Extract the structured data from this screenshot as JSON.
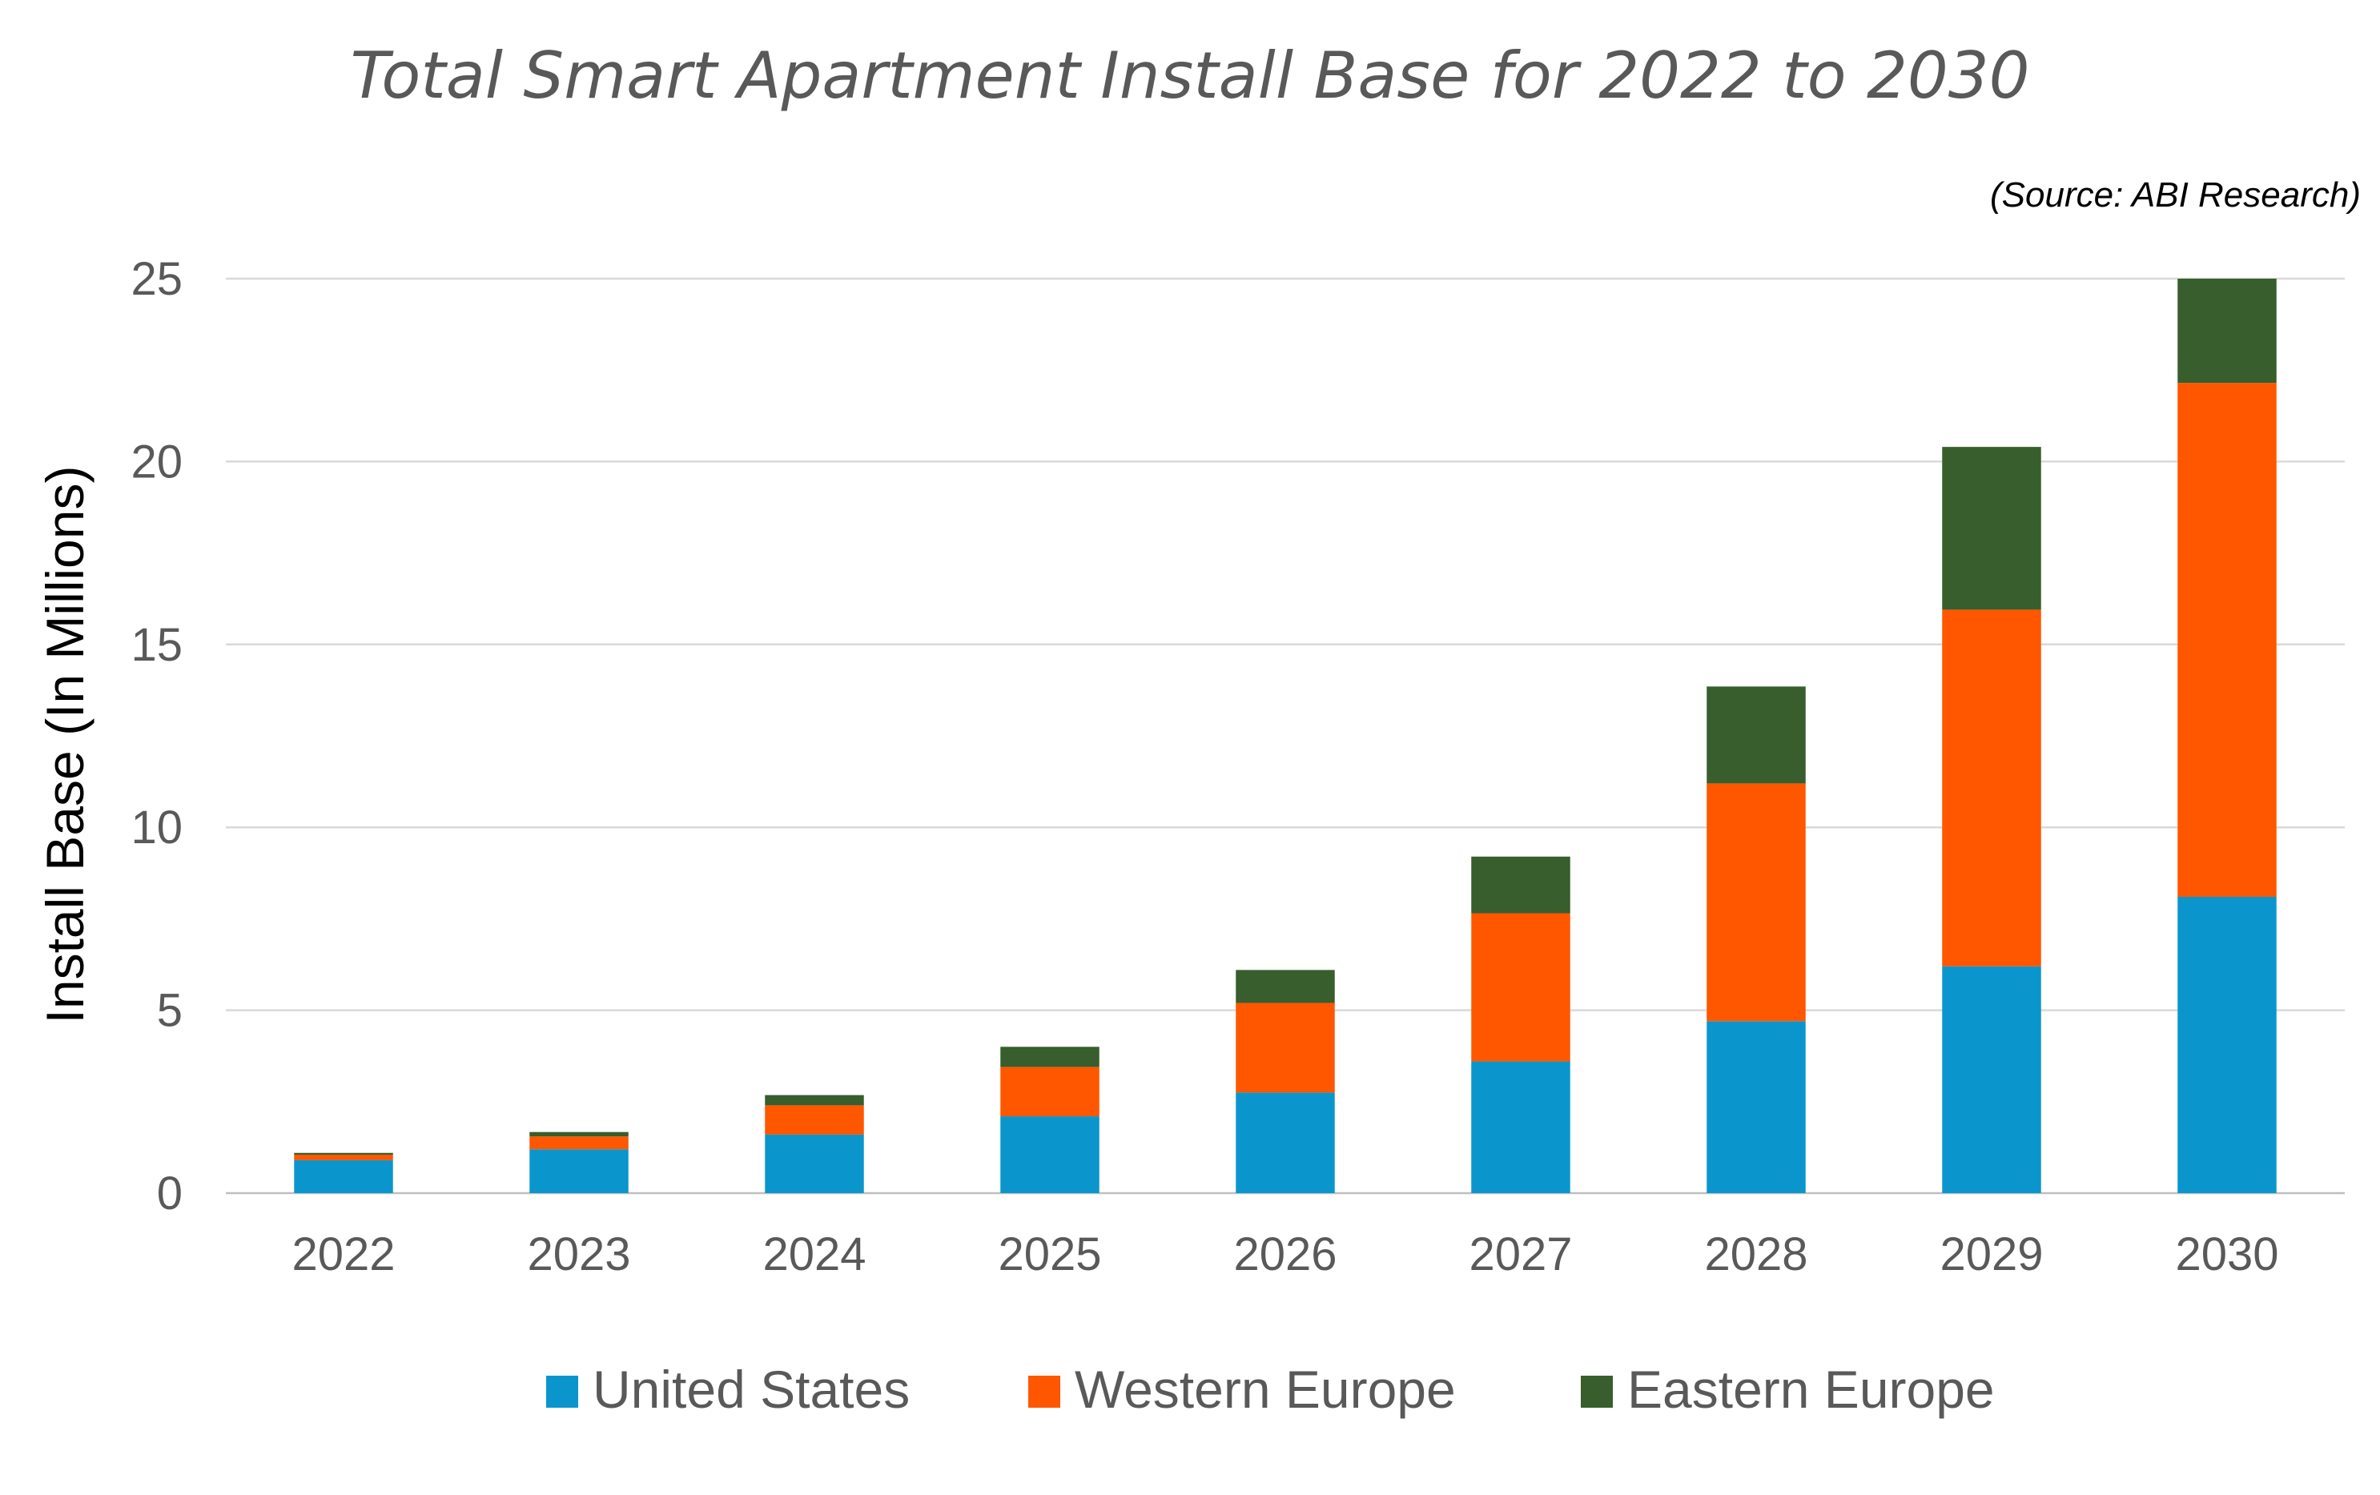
{
  "chart_data": {
    "type": "bar",
    "stacked": true,
    "title": "Total Smart Apartment Install Base for 2022 to 2030",
    "source": "(Source: ABI Research)",
    "xlabel": "",
    "ylabel": "Install Base (In Millions)",
    "ylim": [
      0,
      25
    ],
    "yticks": [
      0,
      5,
      10,
      15,
      20,
      25
    ],
    "grid": true,
    "legend": "bottom",
    "categories": [
      "2022",
      "2023",
      "2024",
      "2025",
      "2026",
      "2027",
      "2028",
      "2029",
      "2030"
    ],
    "series": [
      {
        "name": "United States",
        "color": "#0a96cc",
        "values": [
          0.9,
          1.2,
          1.6,
          2.1,
          2.75,
          3.6,
          4.7,
          6.2,
          8.1
        ]
      },
      {
        "name": "Western Europe",
        "color": "#ff5600",
        "values": [
          0.15,
          0.35,
          0.8,
          1.35,
          2.45,
          4.05,
          6.5,
          9.75,
          14.05
        ]
      },
      {
        "name": "Eastern Europe",
        "color": "#375e2c",
        "values": [
          0.05,
          0.12,
          0.28,
          0.55,
          0.9,
          1.55,
          2.65,
          4.45,
          2.85
        ]
      }
    ]
  }
}
